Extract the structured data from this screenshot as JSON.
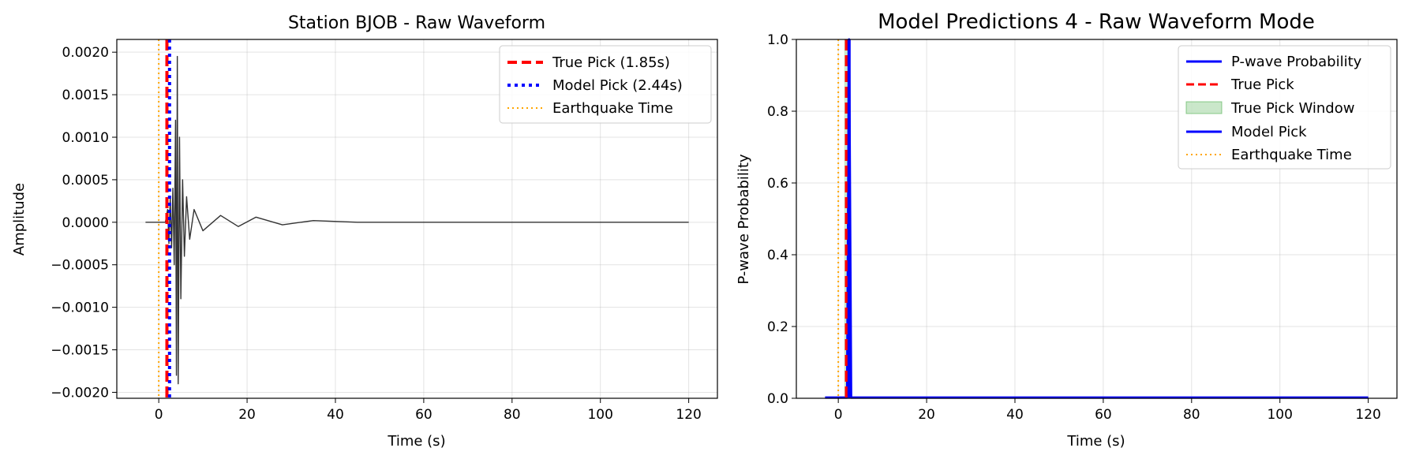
{
  "colors": {
    "true_pick": "#ff0000",
    "model_pick": "#0000ff",
    "earthquake": "#ffa500",
    "waveform": "#333333",
    "probability": "#0000ff",
    "window_fill": "#2ca02c"
  },
  "chart_data": [
    {
      "type": "line",
      "title": "Station BJOB - Raw Waveform",
      "xlabel": "Time (s)",
      "ylabel": "Amplitude",
      "xlim": [
        -9.5,
        126.5
      ],
      "ylim": [
        -0.00207,
        0.00215
      ],
      "xticks": [
        0,
        20,
        40,
        60,
        80,
        100,
        120
      ],
      "xtick_labels": [
        "0",
        "20",
        "40",
        "60",
        "80",
        "100",
        "120"
      ],
      "yticks": [
        -0.002,
        -0.0015,
        -0.001,
        -0.0005,
        0,
        0.0005,
        0.001,
        0.0015,
        0.002
      ],
      "ytick_labels": [
        "−0.0020",
        "−0.0015",
        "−0.0010",
        "−0.0005",
        "0.0000",
        "0.0005",
        "0.0010",
        "0.0015",
        "0.0020"
      ],
      "grid": true,
      "legend_position": "upper right",
      "series": [
        {
          "name": "",
          "style": "solid",
          "color": "#333333",
          "description_points": [
            [
              -3,
              0
            ],
            [
              1.5,
              0
            ],
            [
              2.0,
              0.00015
            ],
            [
              2.3,
              -0.00025
            ],
            [
              2.6,
              0.0003
            ],
            [
              2.9,
              -0.0003
            ],
            [
              3.2,
              0.0004
            ],
            [
              3.5,
              -0.0005
            ],
            [
              3.8,
              0.0012
            ],
            [
              4.0,
              -0.0018
            ],
            [
              4.2,
              0.00195
            ],
            [
              4.4,
              -0.0019
            ],
            [
              4.7,
              0.001
            ],
            [
              5.0,
              -0.0009
            ],
            [
              5.4,
              0.0005
            ],
            [
              5.8,
              -0.0004
            ],
            [
              6.3,
              0.0003
            ],
            [
              7,
              -0.0002
            ],
            [
              8,
              0.00015
            ],
            [
              10,
              -0.0001
            ],
            [
              14,
              8e-05
            ],
            [
              18,
              -5e-05
            ],
            [
              22,
              6e-05
            ],
            [
              28,
              -3e-05
            ],
            [
              35,
              2e-05
            ],
            [
              45,
              0
            ],
            [
              120,
              0
            ]
          ]
        }
      ],
      "vlines": [
        {
          "name": "True Pick (1.85s)",
          "x": 1.85,
          "style": "dashed",
          "color": "#ff0000"
        },
        {
          "name": "Model Pick (2.44s)",
          "x": 2.44,
          "style": "dotted",
          "color": "#0000ff"
        },
        {
          "name": "Earthquake Time",
          "x": 0,
          "style": "dotted",
          "color": "#ffa500"
        }
      ],
      "legend": [
        "True Pick (1.85s)",
        "Model Pick (2.44s)",
        "Earthquake Time"
      ]
    },
    {
      "type": "line",
      "title": "Model Predictions 4 - Raw Waveform Mode",
      "xlabel": "Time (s)",
      "ylabel": "P-wave Probability",
      "xlim": [
        -9.5,
        126.5
      ],
      "ylim": [
        0,
        1
      ],
      "xticks": [
        0,
        20,
        40,
        60,
        80,
        100,
        120
      ],
      "xtick_labels": [
        "0",
        "20",
        "40",
        "60",
        "80",
        "100",
        "120"
      ],
      "yticks": [
        0,
        0.2,
        0.4,
        0.6,
        0.8,
        1.0
      ],
      "ytick_labels": [
        "0.0",
        "0.2",
        "0.4",
        "0.6",
        "0.8",
        "1.0"
      ],
      "grid": true,
      "legend_position": "upper right",
      "series": [
        {
          "name": "P-wave Probability",
          "style": "solid",
          "color": "#0000ff",
          "points": [
            [
              -3,
              0.002
            ],
            [
              2.0,
              0.002
            ],
            [
              2.44,
              1.0
            ],
            [
              2.9,
              0.002
            ],
            [
              120,
              0.002
            ]
          ]
        }
      ],
      "shaded_window": {
        "name": "True Pick Window",
        "x0": 1.35,
        "x1": 2.35
      },
      "vlines": [
        {
          "name": "True Pick",
          "x": 1.85,
          "style": "dashed",
          "color": "#ff0000"
        },
        {
          "name": "Model Pick",
          "x": 2.44,
          "style": "solid",
          "color": "#0000ff"
        },
        {
          "name": "Earthquake Time",
          "x": 0,
          "style": "dotted",
          "color": "#ffa500"
        }
      ],
      "legend": [
        "P-wave Probability",
        "True Pick",
        "True Pick Window",
        "Model Pick",
        "Earthquake Time"
      ]
    }
  ]
}
